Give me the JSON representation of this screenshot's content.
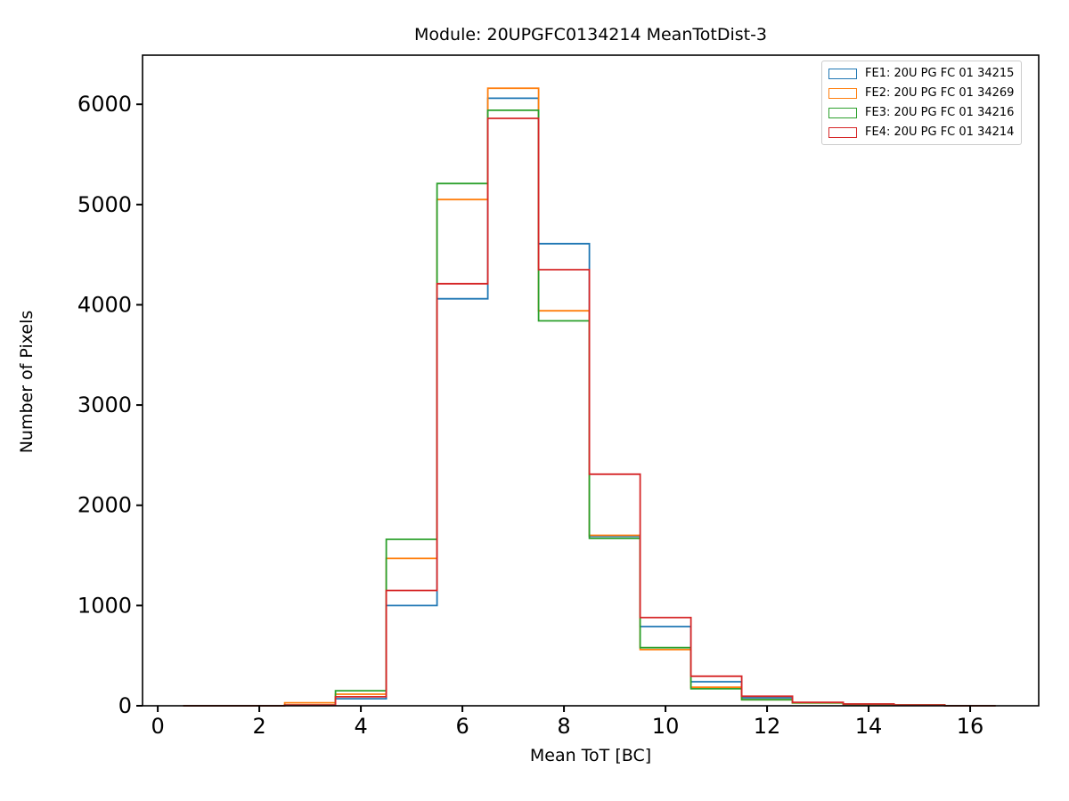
{
  "chart_data": {
    "type": "step-histogram",
    "title": "Module: 20UPGFC0134214 MeanTotDist-3",
    "xlabel": "Mean ToT [BC]",
    "ylabel": "Number of Pixels",
    "grid": false,
    "legend_position": "upper right",
    "xlim": [
      -0.3,
      17.35
    ],
    "ylim": [
      0,
      6490
    ],
    "xticks": [
      0,
      2,
      4,
      6,
      8,
      10,
      12,
      14,
      16
    ],
    "yticks": [
      0,
      1000,
      2000,
      3000,
      4000,
      5000,
      6000
    ],
    "bin_edges": [
      0.5,
      1.5,
      2.5,
      3.5,
      4.5,
      5.5,
      6.5,
      7.5,
      8.5,
      9.5,
      10.5,
      11.5,
      12.5,
      13.5,
      14.5,
      15.5,
      16.5
    ],
    "series": [
      {
        "name": "FE1",
        "label": "FE1: 20U PG FC 01 34215",
        "color": "#1f77b4",
        "values": [
          0,
          0,
          5,
          70,
          1000,
          4060,
          6060,
          4610,
          1690,
          790,
          240,
          80,
          30,
          15,
          8,
          0
        ]
      },
      {
        "name": "FE2",
        "label": "FE2: 20U PG FC 01 34269",
        "color": "#ff7f0e",
        "values": [
          0,
          0,
          30,
          115,
          1470,
          5050,
          6160,
          3940,
          1700,
          560,
          185,
          60,
          28,
          15,
          8,
          0
        ]
      },
      {
        "name": "FE3",
        "label": "FE3: 20U PG FC 01 34216",
        "color": "#2ca02c",
        "values": [
          0,
          0,
          8,
          150,
          1660,
          5210,
          5940,
          3840,
          1670,
          580,
          170,
          60,
          30,
          15,
          8,
          0
        ]
      },
      {
        "name": "FE4",
        "label": "FE4: 20U PG FC 01 34214",
        "color": "#d62728",
        "values": [
          0,
          0,
          8,
          90,
          1150,
          4210,
          5860,
          4350,
          2310,
          880,
          295,
          95,
          35,
          18,
          8,
          0
        ]
      }
    ]
  }
}
